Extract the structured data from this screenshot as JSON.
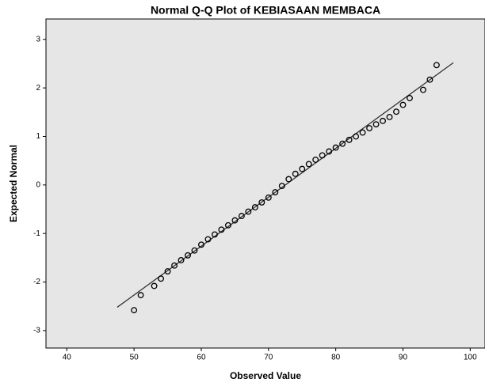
{
  "chart_data": {
    "type": "scatter",
    "title": "Normal Q-Q Plot of KEBIASAAN MEMBACA",
    "x_label": "Observed Value",
    "y_label": "Expected Normal",
    "xlim": [
      36.9,
      102.2
    ],
    "ylim": [
      -3.36,
      3.42
    ],
    "xticks": [
      40,
      50,
      60,
      70,
      80,
      90,
      100
    ],
    "yticks": [
      -3,
      -2,
      -1,
      0,
      1,
      2,
      3
    ],
    "background": "#e6e6e6",
    "color": "#000000",
    "x": [
      50,
      51,
      53,
      54,
      55,
      56,
      57,
      58,
      59,
      60,
      61,
      62,
      63,
      64,
      65,
      66,
      67,
      68,
      69,
      70,
      71,
      72,
      73,
      74,
      75,
      76,
      77,
      78,
      79,
      80,
      81,
      82,
      83,
      84,
      85,
      86,
      87,
      88,
      89,
      90,
      91,
      93,
      94,
      95
    ],
    "values": [
      -2.58,
      -2.27,
      -2.08,
      -1.93,
      -1.78,
      -1.66,
      -1.55,
      -1.45,
      -1.35,
      -1.23,
      -1.12,
      -1.02,
      -0.92,
      -0.83,
      -0.73,
      -0.64,
      -0.55,
      -0.46,
      -0.36,
      -0.26,
      -0.15,
      -0.02,
      0.12,
      0.23,
      0.33,
      0.43,
      0.52,
      0.61,
      0.69,
      0.77,
      0.85,
      0.93,
      1.0,
      1.08,
      1.17,
      1.25,
      1.32,
      1.4,
      1.51,
      1.65,
      1.79,
      1.96,
      2.17,
      2.47
    ],
    "reference_line": {
      "x": [
        47.5,
        97.5
      ],
      "y": [
        -2.52,
        2.52
      ]
    }
  }
}
